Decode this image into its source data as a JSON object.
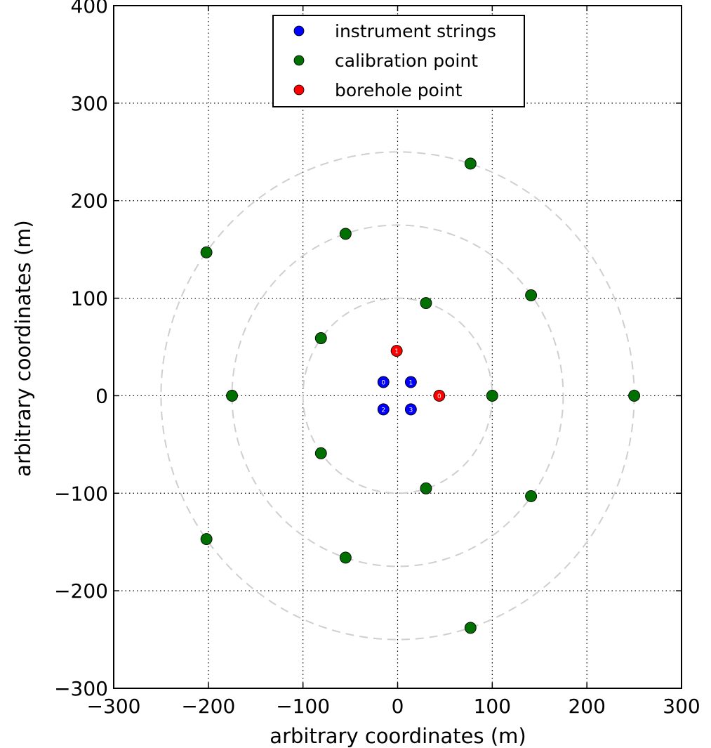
{
  "chart_data": {
    "type": "scatter",
    "xlabel": "arbitrary coordinates (m)",
    "ylabel": "arbitrary coordinates (m)",
    "xlim": [
      -300,
      300
    ],
    "ylim": [
      -300,
      400
    ],
    "xticks": [
      -300,
      -200,
      -100,
      0,
      100,
      200,
      300
    ],
    "yticks": [
      -300,
      -200,
      -100,
      0,
      100,
      200,
      300,
      400
    ],
    "xtick_labels": [
      "−300",
      "−200",
      "−100",
      "0",
      "100",
      "200",
      "300"
    ],
    "ytick_labels": [
      "−300",
      "−200",
      "−100",
      "0",
      "100",
      "200",
      "300",
      "400"
    ],
    "grid": true,
    "legend": {
      "position": "top-center"
    },
    "reference_circles": {
      "center": [
        0,
        0
      ],
      "radii": [
        100,
        175,
        250
      ],
      "style": "dashed",
      "color": "#cfcfcf"
    },
    "series": [
      {
        "name": "instrument strings",
        "color": "#0000ff",
        "points": [
          {
            "x": -15,
            "y": 14,
            "label": "0"
          },
          {
            "x": 14,
            "y": 14,
            "label": "1"
          },
          {
            "x": -15,
            "y": -14,
            "label": "2"
          },
          {
            "x": 14,
            "y": -14,
            "label": "3"
          }
        ]
      },
      {
        "name": "calibration point",
        "color": "#007000",
        "points": [
          {
            "x": 100,
            "y": 0
          },
          {
            "x": 30,
            "y": 95
          },
          {
            "x": -81,
            "y": 59
          },
          {
            "x": -81,
            "y": -59
          },
          {
            "x": 30,
            "y": -95
          },
          {
            "x": -175,
            "y": 0
          },
          {
            "x": -55,
            "y": 166
          },
          {
            "x": 141,
            "y": 103
          },
          {
            "x": 141,
            "y": -103
          },
          {
            "x": -55,
            "y": -166
          },
          {
            "x": 250,
            "y": 0
          },
          {
            "x": 77,
            "y": 238
          },
          {
            "x": -202,
            "y": 147
          },
          {
            "x": -202,
            "y": -147
          },
          {
            "x": 77,
            "y": -238
          }
        ]
      },
      {
        "name": "borehole point",
        "color": "#ff0000",
        "points": [
          {
            "x": -1,
            "y": 46,
            "label": "1"
          },
          {
            "x": 44,
            "y": 0,
            "label": "0"
          }
        ]
      }
    ]
  }
}
